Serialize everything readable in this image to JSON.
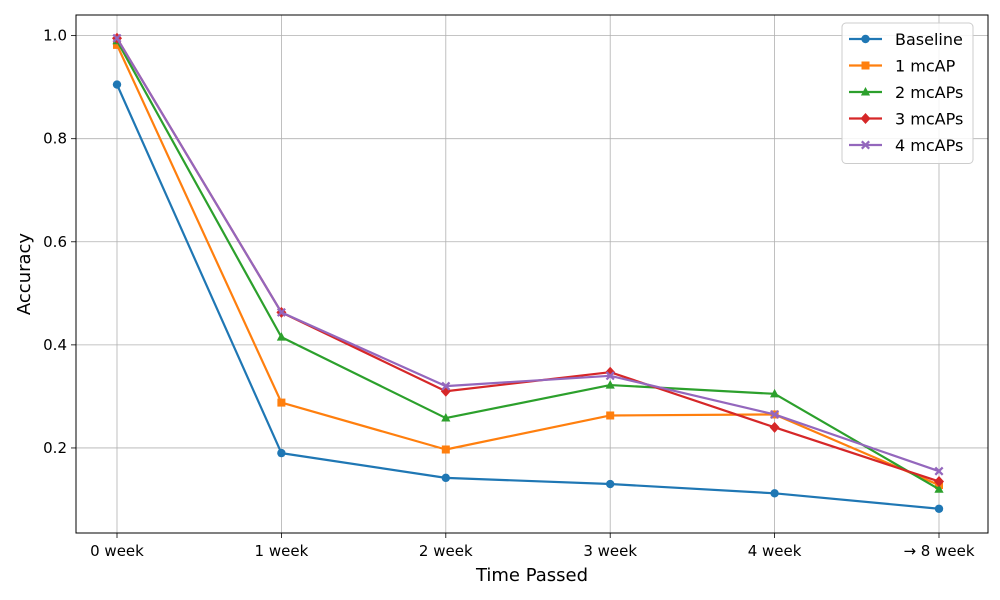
{
  "chart_data": {
    "type": "line",
    "title": "",
    "xlabel": "Time Passed",
    "ylabel": "Accuracy",
    "categories": [
      "0 week",
      "1 week",
      "2 week",
      "3 week",
      "4 week",
      "→ 8 week"
    ],
    "yticks": [
      "0.2",
      "0.4",
      "0.6",
      "0.8",
      "1.0"
    ],
    "ylim": [
      0.035,
      1.04
    ],
    "grid": true,
    "legend_position": "top-right",
    "series": [
      {
        "name": "Baseline",
        "color": "#1f77b4",
        "marker": "circle",
        "values": [
          0.905,
          0.19,
          0.142,
          0.13,
          0.112,
          0.082
        ]
      },
      {
        "name": "1 mcAP",
        "color": "#ff7f0e",
        "marker": "square",
        "values": [
          0.982,
          0.288,
          0.197,
          0.263,
          0.265,
          0.128
        ]
      },
      {
        "name": "2 mcAPs",
        "color": "#2ca02c",
        "marker": "triangle",
        "values": [
          0.99,
          0.415,
          0.258,
          0.322,
          0.305,
          0.12
        ]
      },
      {
        "name": "3 mcAPs",
        "color": "#d62728",
        "marker": "diamond",
        "values": [
          0.995,
          0.463,
          0.31,
          0.347,
          0.24,
          0.135
        ]
      },
      {
        "name": "4 mcAPs",
        "color": "#9467bd",
        "marker": "x",
        "values": [
          0.995,
          0.463,
          0.32,
          0.34,
          0.265,
          0.155
        ]
      }
    ]
  }
}
